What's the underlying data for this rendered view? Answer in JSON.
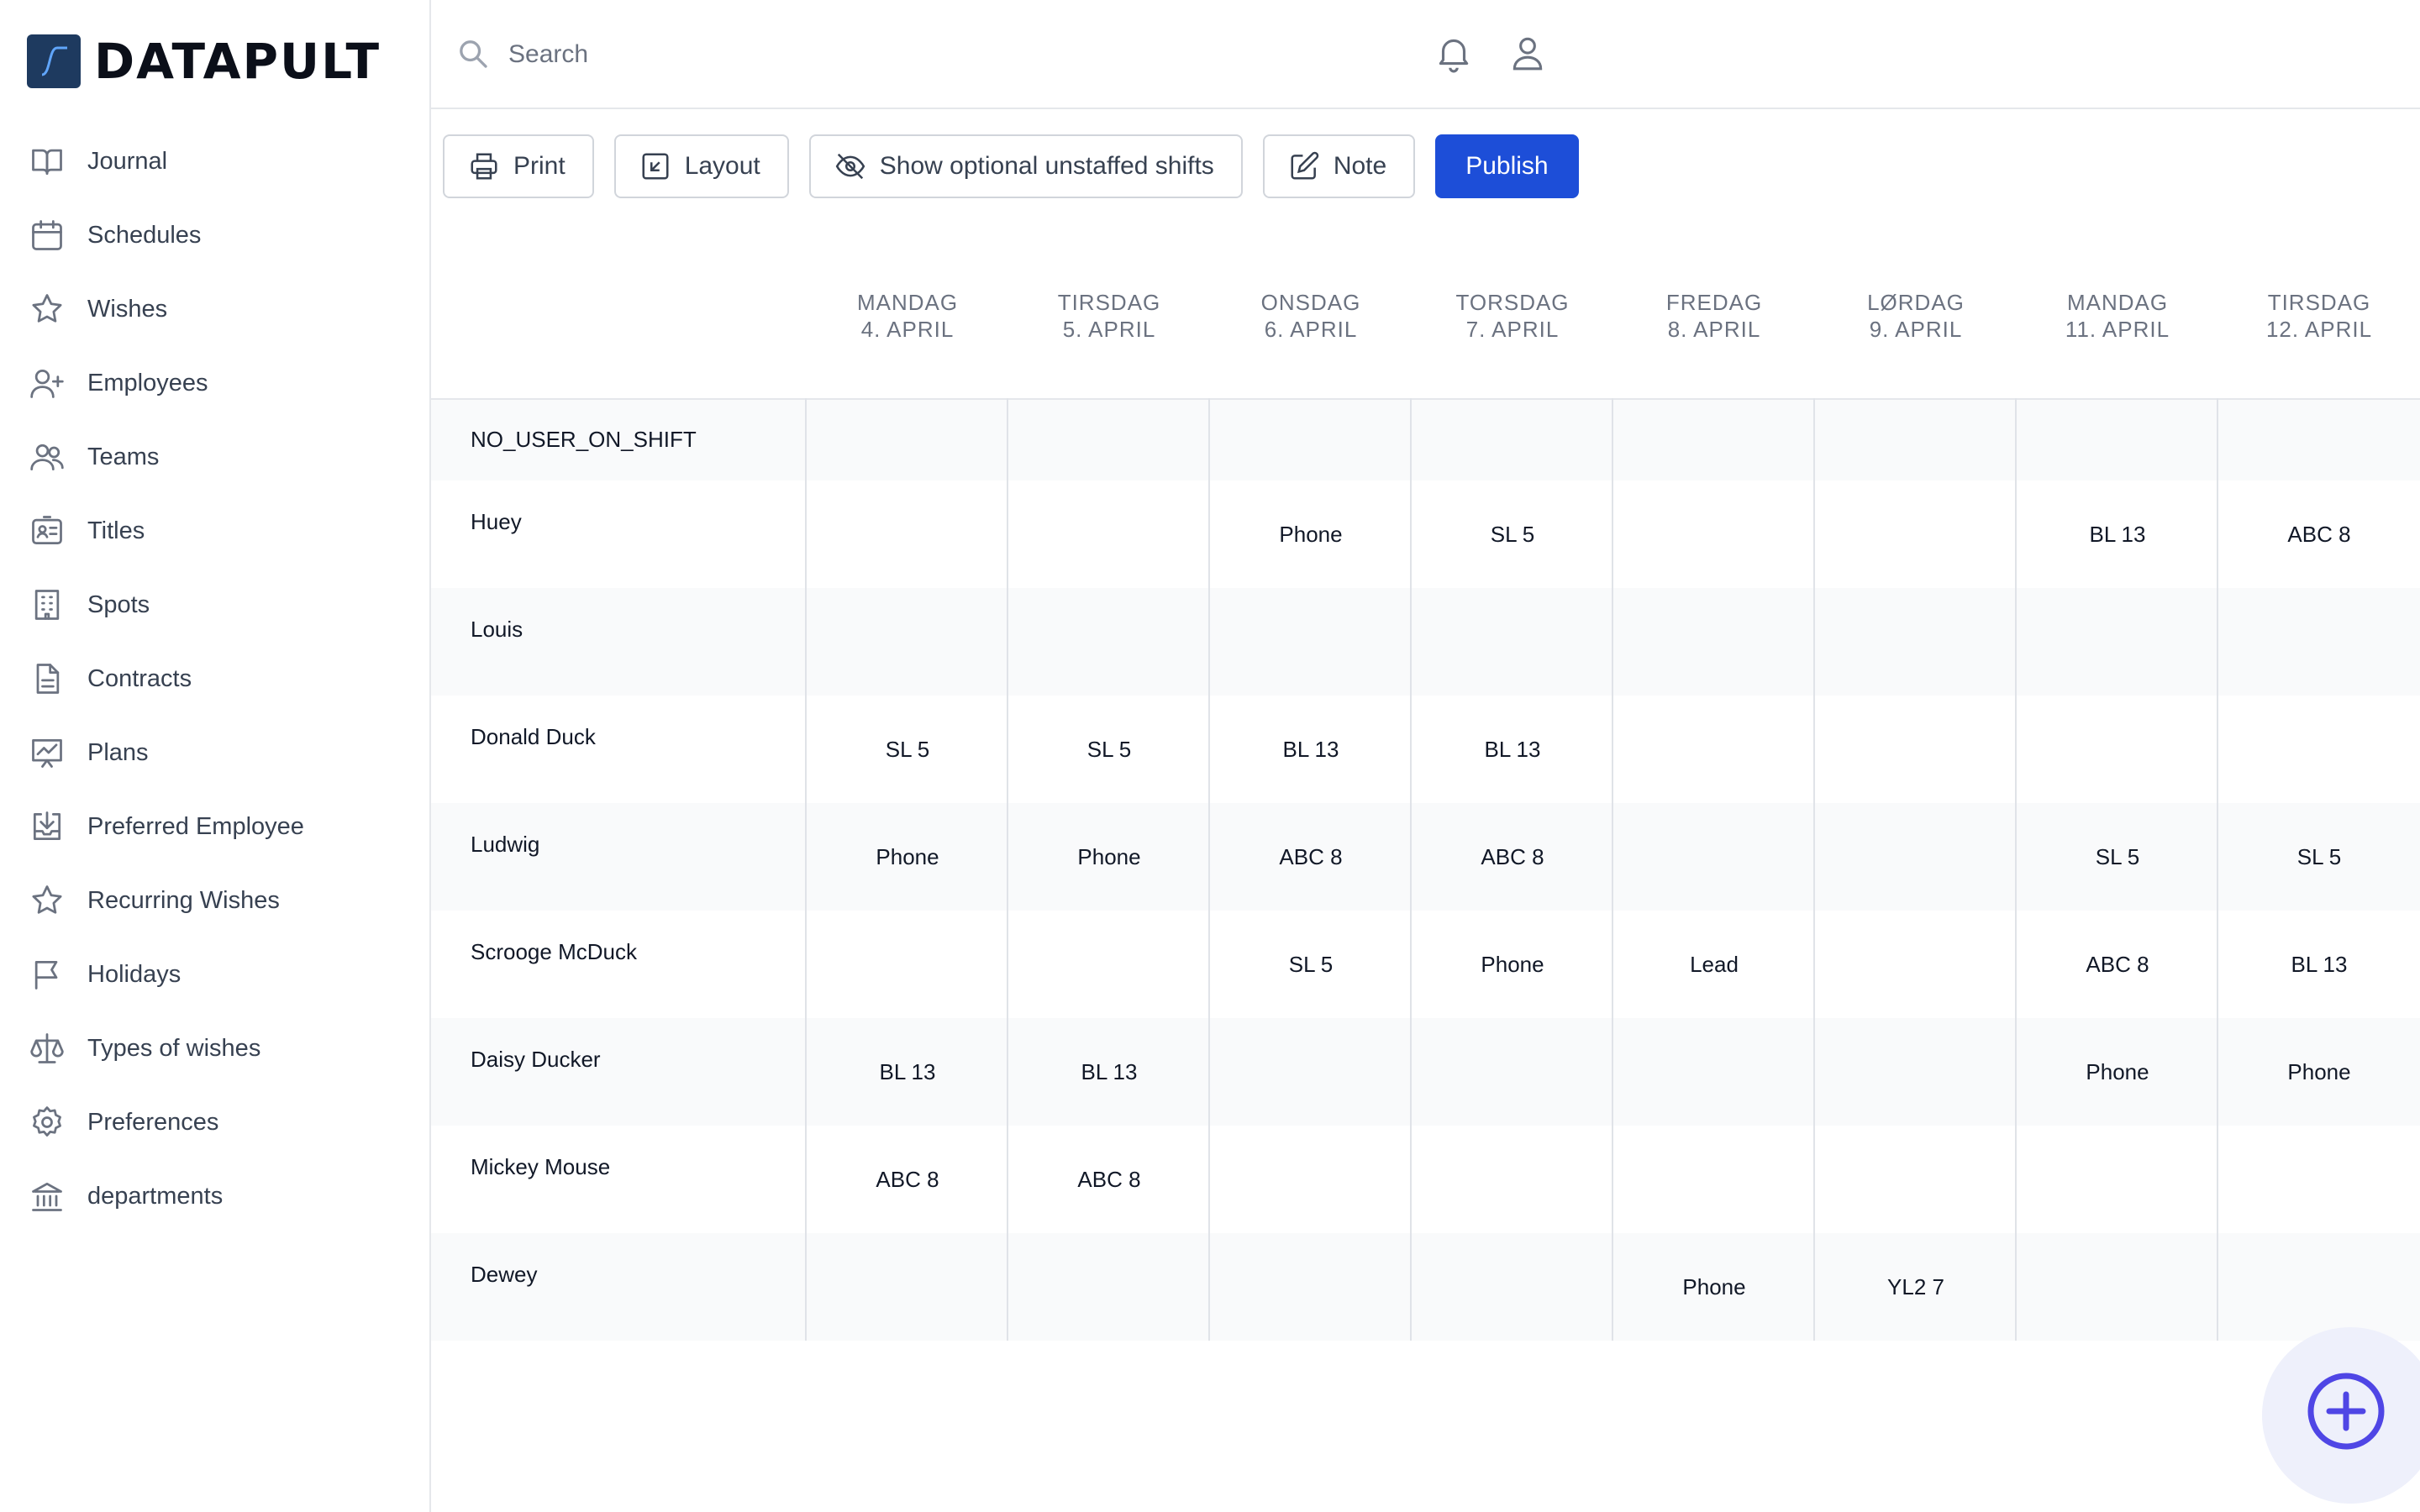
{
  "brand": {
    "name": "DATAPULT",
    "accent": "#1d4ed8",
    "logo_color": "#1e3a5f"
  },
  "sidebar": {
    "items": [
      {
        "label": "Journal",
        "icon": "book-icon"
      },
      {
        "label": "Schedules",
        "icon": "calendar-icon"
      },
      {
        "label": "Wishes",
        "icon": "star-icon"
      },
      {
        "label": "Employees",
        "icon": "user-plus-icon"
      },
      {
        "label": "Teams",
        "icon": "users-icon"
      },
      {
        "label": "Titles",
        "icon": "id-card-icon"
      },
      {
        "label": "Spots",
        "icon": "building-icon"
      },
      {
        "label": "Contracts",
        "icon": "document-icon"
      },
      {
        "label": "Plans",
        "icon": "chart-icon"
      },
      {
        "label": "Preferred Employee",
        "icon": "download-tray-icon"
      },
      {
        "label": "Recurring Wishes",
        "icon": "star-icon"
      },
      {
        "label": "Holidays",
        "icon": "flag-icon"
      },
      {
        "label": "Types of wishes",
        "icon": "scale-icon"
      },
      {
        "label": "Preferences",
        "icon": "gear-icon"
      },
      {
        "label": "departments",
        "icon": "bank-icon"
      }
    ]
  },
  "search": {
    "placeholder": "Search",
    "value": ""
  },
  "toolbar": {
    "print": "Print",
    "layout": "Layout",
    "unstaffed": "Show optional unstaffed shifts",
    "note": "Note",
    "publish": "Publish"
  },
  "schedule": {
    "days": [
      {
        "weekday": "MANDAG",
        "date": "4. APRIL"
      },
      {
        "weekday": "TIRSDAG",
        "date": "5. APRIL"
      },
      {
        "weekday": "ONSDAG",
        "date": "6. APRIL"
      },
      {
        "weekday": "TORSDAG",
        "date": "7. APRIL"
      },
      {
        "weekday": "FREDAG",
        "date": "8. APRIL"
      },
      {
        "weekday": "LØRDAG",
        "date": "9. APRIL"
      },
      {
        "weekday": "MANDAG",
        "date": "11. APRIL"
      },
      {
        "weekday": "TIRSDAG",
        "date": "12. APRIL"
      }
    ],
    "rows": [
      {
        "name": "NO_USER_ON_SHIFT",
        "shifts": [
          "",
          "",
          "",
          "",
          "",
          "",
          "",
          ""
        ]
      },
      {
        "name": "Huey",
        "shifts": [
          "",
          "",
          "Phone",
          "SL 5",
          "",
          "",
          "BL 13",
          "ABC 8"
        ]
      },
      {
        "name": "Louis",
        "shifts": [
          "",
          "",
          "",
          "",
          "",
          "",
          "",
          ""
        ]
      },
      {
        "name": "Donald Duck",
        "shifts": [
          "SL 5",
          "SL 5",
          "BL 13",
          "BL 13",
          "",
          "",
          "",
          ""
        ]
      },
      {
        "name": "Ludwig",
        "shifts": [
          "Phone",
          "Phone",
          "ABC 8",
          "ABC 8",
          "",
          "",
          "SL 5",
          "SL 5"
        ]
      },
      {
        "name": "Scrooge McDuck",
        "shifts": [
          "",
          "",
          "SL 5",
          "Phone",
          "Lead",
          "",
          "ABC 8",
          "BL 13"
        ]
      },
      {
        "name": "Daisy Ducker",
        "shifts": [
          "BL 13",
          "BL 13",
          "",
          "",
          "",
          "",
          "Phone",
          "Phone"
        ]
      },
      {
        "name": "Mickey Mouse",
        "shifts": [
          "ABC 8",
          "ABC 8",
          "",
          "",
          "",
          "",
          "",
          ""
        ]
      },
      {
        "name": "Dewey",
        "shifts": [
          "",
          "",
          "",
          "",
          "Phone",
          "YL2 7",
          "",
          ""
        ]
      }
    ]
  }
}
